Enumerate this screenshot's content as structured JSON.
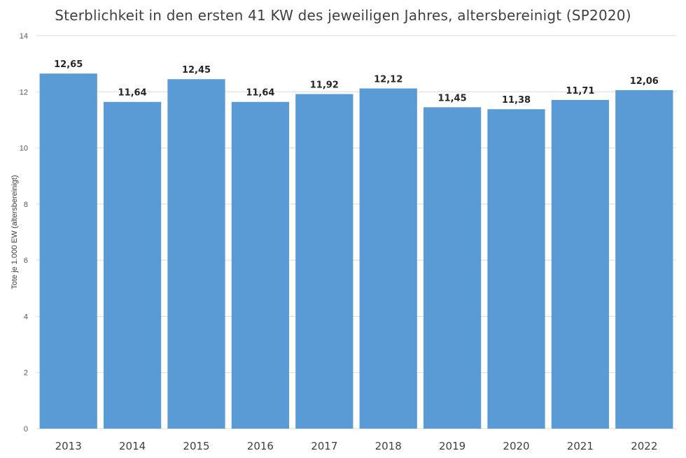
{
  "chart_data": {
    "type": "bar",
    "title": "Sterblichkeit in den ersten 41 KW des jeweiligen Jahres, altersbereinigt (SP2020)",
    "xlabel": "",
    "ylabel": "Tote je 1.000 EW (altersbereinigt)",
    "categories": [
      "2013",
      "2014",
      "2015",
      "2016",
      "2017",
      "2018",
      "2019",
      "2020",
      "2021",
      "2022"
    ],
    "values": [
      12.65,
      11.64,
      12.45,
      11.64,
      11.92,
      12.12,
      11.45,
      11.38,
      11.71,
      12.06
    ],
    "value_labels": [
      "12,65",
      "11,64",
      "12,45",
      "11,64",
      "11,92",
      "12,12",
      "11,45",
      "11,38",
      "11,71",
      "12,06"
    ],
    "ylim": [
      0,
      14
    ],
    "yticks": [
      "0",
      "2",
      "4",
      "6",
      "8",
      "10",
      "12",
      "14"
    ],
    "grid": true,
    "legend": "none",
    "bar_color": "#5b9bd5"
  }
}
